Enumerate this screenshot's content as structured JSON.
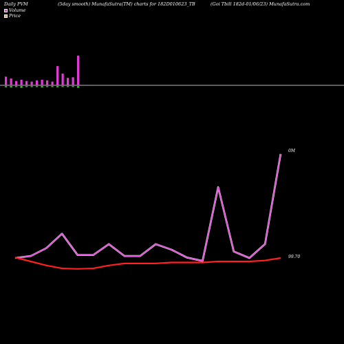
{
  "header": {
    "left": "Daily PVM",
    "mid": "(5day smooth) MunafaSutra(TM) charts for 182D010623_TB",
    "right": "(Goi  Tbill  182d-01/06/23) MunafaSutra.com"
  },
  "legend": {
    "volume_label": "Volume",
    "price_label": "Price",
    "volume_color": "#e23ad6",
    "price_color": "#e7a26b"
  },
  "chart_data": {
    "type": "line",
    "volume_bars": {
      "up": [
        0.7,
        0.55,
        0.35,
        0.45,
        0.35,
        0.3,
        0.4,
        0.45,
        0.4,
        0.3,
        1.55,
        0.95,
        0.6,
        0.65,
        2.4
      ],
      "down": [
        0.1,
        0.12,
        0.05,
        0.15,
        0.08,
        0.05,
        0.08,
        0.12,
        0.08,
        0.05,
        0.1,
        0.08,
        0.05,
        0.06,
        0.15
      ]
    },
    "series": [
      {
        "color": "#e23ad6",
        "values": [
          0.0,
          0.4,
          2.0,
          4.9,
          0.6,
          0.6,
          2.8,
          0.4,
          0.4,
          2.8,
          1.7,
          0.1,
          -0.6,
          14.3,
          1.3,
          0.0,
          2.8,
          21.0
        ]
      },
      {
        "color": "#ff2020",
        "values": [
          0.1,
          -0.7,
          -1.5,
          -2.1,
          -2.2,
          -2.1,
          -1.5,
          -1.1,
          -1.1,
          -1.1,
          -0.9,
          -0.9,
          -0.9,
          -0.7,
          -0.7,
          -0.7,
          -0.5,
          0.0
        ]
      }
    ],
    "annotations": [
      {
        "text": "0M"
      },
      {
        "text": "99.70"
      }
    ]
  }
}
